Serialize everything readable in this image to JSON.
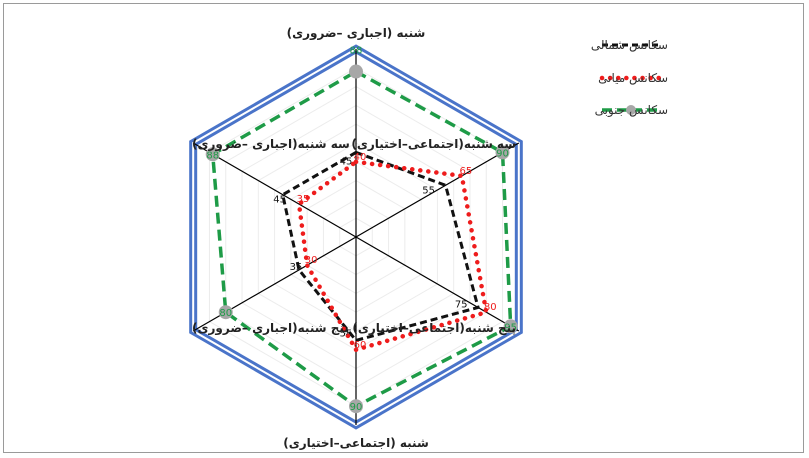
{
  "chart_data": {
    "type": "radar",
    "title": "",
    "axes": [
      "شنبه (اجباری –ضروری)",
      "سه شنبه(اجتماعی–اختیاری)",
      "پنج شنبه(اجتماعی–اختیاری)",
      "شنبه (اجتماعی–اختیاری)",
      "پنج شنبه(اجباری –ضروری)",
      "سه شنبه(اجباری –ضروری)"
    ],
    "rmax": 100,
    "series": [
      {
        "name": "سکانس شمالی",
        "color": "#111111",
        "style": "dashed",
        "values": [
          45,
          55,
          75,
          55,
          35,
          45
        ],
        "labels": [
          "45",
          "55",
          "75",
          "55",
          "35",
          "45"
        ]
      },
      {
        "name": "سکانس میانی",
        "color": "#ee1c1c",
        "style": "dotted",
        "values": [
          40,
          65,
          80,
          60,
          30,
          35
        ],
        "labels": [
          "40",
          "65",
          "80",
          "60",
          "30",
          "35"
        ]
      },
      {
        "name": "سکانس جنوبی",
        "color": "#1e9b47",
        "style": "dashed-marker",
        "marker_color": "#a7a7a7",
        "values": [
          88,
          90,
          95,
          90,
          80,
          88
        ],
        "labels": [
          "88",
          "90",
          "95",
          "90",
          "80",
          "88"
        ]
      }
    ],
    "legend_position": "top-right",
    "outline_color": "#4a74c9"
  }
}
